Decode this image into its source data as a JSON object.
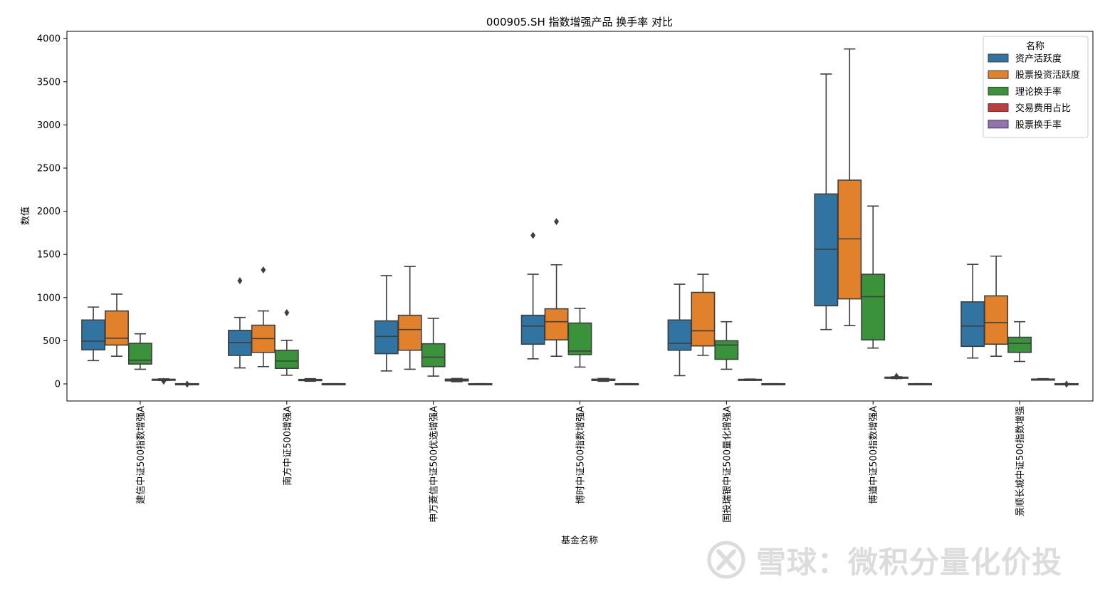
{
  "chart_data": {
    "type": "box",
    "title": "000905.SH 指数增强产品 换手率 对比",
    "xlabel": "基金名称",
    "ylabel": "数值",
    "ylim": [
      -200,
      4080
    ],
    "yticks": [
      0,
      500,
      1000,
      1500,
      2000,
      2500,
      3000,
      3500,
      4000
    ],
    "grid": false,
    "legend": {
      "title": "名称",
      "position": "top-right"
    },
    "categories": [
      "建信中证500指数增强A",
      "南方中证500增强A",
      "申万菱信中证500优选增强A",
      "博时中证500指数增强A",
      "国投瑞银中证500量化增强A",
      "博道中证500指数增强A",
      "景顺长城中证500指数增强"
    ],
    "series": [
      {
        "name": "资产活跃度",
        "color": "#3274a1",
        "boxes": [
          {
            "whislo": 270,
            "q1": 395,
            "med": 495,
            "q3": 740,
            "whishi": 890,
            "fliers": []
          },
          {
            "whislo": 185,
            "q1": 330,
            "med": 480,
            "q3": 620,
            "whishi": 770,
            "fliers": [
              1195
            ]
          },
          {
            "whislo": 150,
            "q1": 350,
            "med": 550,
            "q3": 730,
            "whishi": 1255,
            "fliers": []
          },
          {
            "whislo": 290,
            "q1": 460,
            "med": 670,
            "q3": 795,
            "whishi": 1270,
            "fliers": [
              1720
            ]
          },
          {
            "whislo": 95,
            "q1": 390,
            "med": 470,
            "q3": 740,
            "whishi": 1155,
            "fliers": []
          },
          {
            "whislo": 630,
            "q1": 905,
            "med": 1560,
            "q3": 2200,
            "whishi": 3590,
            "fliers": []
          },
          {
            "whislo": 300,
            "q1": 435,
            "med": 670,
            "q3": 950,
            "whishi": 1385,
            "fliers": []
          }
        ]
      },
      {
        "name": "股票投资活跃度",
        "color": "#e1812c",
        "boxes": [
          {
            "whislo": 320,
            "q1": 450,
            "med": 530,
            "q3": 845,
            "whishi": 1040,
            "fliers": []
          },
          {
            "whislo": 200,
            "q1": 365,
            "med": 525,
            "q3": 680,
            "whishi": 845,
            "fliers": [
              1320
            ]
          },
          {
            "whislo": 170,
            "q1": 390,
            "med": 630,
            "q3": 795,
            "whishi": 1360,
            "fliers": []
          },
          {
            "whislo": 320,
            "q1": 510,
            "med": 720,
            "q3": 870,
            "whishi": 1380,
            "fliers": [
              1880
            ]
          },
          {
            "whislo": 330,
            "q1": 440,
            "med": 615,
            "q3": 1060,
            "whishi": 1270,
            "fliers": []
          },
          {
            "whislo": 675,
            "q1": 985,
            "med": 1680,
            "q3": 2360,
            "whishi": 3880,
            "fliers": []
          },
          {
            "whislo": 320,
            "q1": 460,
            "med": 710,
            "q3": 1020,
            "whishi": 1480,
            "fliers": []
          }
        ]
      },
      {
        "name": "理论换手率",
        "color": "#3a923a",
        "boxes": [
          {
            "whislo": 170,
            "q1": 230,
            "med": 275,
            "q3": 470,
            "whishi": 580,
            "fliers": []
          },
          {
            "whislo": 100,
            "q1": 180,
            "med": 265,
            "q3": 390,
            "whishi": 505,
            "fliers": [
              825
            ]
          },
          {
            "whislo": 90,
            "q1": 200,
            "med": 310,
            "q3": 465,
            "whishi": 760,
            "fliers": []
          },
          {
            "whislo": 195,
            "q1": 340,
            "med": 380,
            "q3": 705,
            "whishi": 875,
            "fliers": []
          },
          {
            "whislo": 170,
            "q1": 285,
            "med": 450,
            "q3": 500,
            "whishi": 720,
            "fliers": []
          },
          {
            "whislo": 415,
            "q1": 510,
            "med": 1010,
            "q3": 1270,
            "whishi": 2060,
            "fliers": []
          },
          {
            "whislo": 260,
            "q1": 365,
            "med": 470,
            "q3": 540,
            "whishi": 720,
            "fliers": []
          }
        ]
      },
      {
        "name": "交易费用占比",
        "color": "#c03d3e",
        "boxes": [
          {
            "whislo": 40,
            "q1": 46,
            "med": 50,
            "q3": 54,
            "whishi": 58,
            "fliers": [
              32
            ]
          },
          {
            "whislo": 30,
            "q1": 38,
            "med": 45,
            "q3": 52,
            "whishi": 60,
            "fliers": []
          },
          {
            "whislo": 25,
            "q1": 35,
            "med": 45,
            "q3": 55,
            "whishi": 62,
            "fliers": []
          },
          {
            "whislo": 30,
            "q1": 40,
            "med": 48,
            "q3": 55,
            "whishi": 62,
            "fliers": []
          },
          {
            "whislo": 42,
            "q1": 46,
            "med": 50,
            "q3": 53,
            "whishi": 56,
            "fliers": []
          },
          {
            "whislo": 62,
            "q1": 68,
            "med": 72,
            "q3": 78,
            "whishi": 82,
            "fliers": [
              88
            ]
          },
          {
            "whislo": 44,
            "q1": 48,
            "med": 52,
            "q3": 56,
            "whishi": 60,
            "fliers": []
          }
        ]
      },
      {
        "name": "股票换手率",
        "color": "#9372b2",
        "boxes": [
          {
            "whislo": 0,
            "q1": 0,
            "med": 1,
            "q3": 2,
            "whishi": 3,
            "fliers": [
              -3
            ]
          },
          {
            "whislo": 0,
            "q1": 0,
            "med": 1,
            "q3": 2,
            "whishi": 3,
            "fliers": []
          },
          {
            "whislo": 0,
            "q1": 0,
            "med": 1,
            "q3": 2,
            "whishi": 3,
            "fliers": []
          },
          {
            "whislo": 0,
            "q1": 0,
            "med": 1,
            "q3": 2,
            "whishi": 3,
            "fliers": []
          },
          {
            "whislo": 0,
            "q1": 0,
            "med": 1,
            "q3": 2,
            "whishi": 3,
            "fliers": []
          },
          {
            "whislo": 0,
            "q1": 0,
            "med": 1,
            "q3": 2,
            "whishi": 3,
            "fliers": []
          },
          {
            "whislo": 0,
            "q1": 0,
            "med": 1,
            "q3": 2,
            "whishi": 3,
            "fliers": [
              -3
            ]
          }
        ]
      }
    ]
  },
  "watermark": {
    "text": "雪球：微积分量化价投",
    "icon": "snowball-logo-icon"
  }
}
